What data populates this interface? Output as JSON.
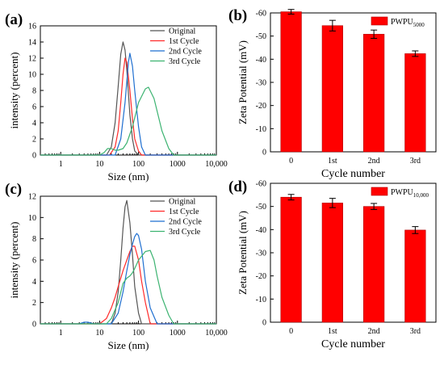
{
  "chart_data": [
    {
      "panel": "(a)",
      "type": "line",
      "xlabel": "Size (nm)",
      "ylabel": "intensity (percent)",
      "xscale": "log",
      "xlim": [
        0.3,
        10000
      ],
      "ylim": [
        0,
        16
      ],
      "xticks": [
        1,
        10,
        100,
        1000,
        10000
      ],
      "xtick_labels": [
        "1",
        "10",
        "100",
        "1000",
        "10,000"
      ],
      "yticks": [
        0,
        2,
        4,
        6,
        8,
        10,
        12,
        14,
        16
      ],
      "legend_position": "top-right",
      "series": [
        {
          "name": "Original",
          "color": "#555555",
          "x": [
            0.3,
            15,
            20,
            25,
            30,
            35,
            40,
            45,
            50,
            60,
            70,
            80,
            100,
            10000
          ],
          "y": [
            0,
            0,
            1.0,
            4.0,
            8.5,
            12.5,
            14.0,
            13.0,
            10.5,
            5.0,
            2.0,
            0.5,
            0,
            0
          ]
        },
        {
          "name": "1st Cycle",
          "color": "#ff2a2a",
          "x": [
            0.3,
            18,
            25,
            30,
            35,
            40,
            45,
            50,
            60,
            70,
            80,
            100,
            120,
            10000
          ],
          "y": [
            0,
            0,
            1.0,
            3.0,
            6.5,
            10.0,
            12.0,
            11.5,
            8.0,
            4.5,
            2.0,
            0.5,
            0,
            0
          ]
        },
        {
          "name": "2nd Cycle",
          "color": "#1f6fd0",
          "x": [
            0.3,
            25,
            35,
            45,
            55,
            60,
            70,
            80,
            100,
            120,
            150,
            10000
          ],
          "y": [
            0,
            0,
            2.0,
            6.5,
            11.5,
            12.6,
            11.0,
            8.0,
            3.5,
            1.0,
            0,
            0
          ]
        },
        {
          "name": "3rd Cycle",
          "color": "#3cb371",
          "x": [
            0.3,
            10,
            13,
            16,
            20,
            25,
            30,
            40,
            50,
            70,
            100,
            150,
            180,
            250,
            400,
            600,
            800,
            10000
          ],
          "y": [
            0,
            0,
            0.3,
            0.8,
            0.8,
            0.6,
            0.6,
            0.8,
            1.5,
            3.5,
            6.5,
            8.2,
            8.4,
            7.0,
            3.0,
            0.8,
            0,
            0
          ]
        }
      ]
    },
    {
      "panel": "(b)",
      "type": "bar",
      "xlabel": "Cycle number",
      "ylabel": "Zeta Potential (mV)",
      "categories": [
        "0",
        "1st",
        "2nd",
        "3rd"
      ],
      "ylim": [
        0,
        -60
      ],
      "yticks": [
        0,
        -10,
        -20,
        -30,
        -40,
        -50,
        -60
      ],
      "legend_position": "top-right",
      "legend_name": "PWPU",
      "legend_sub": "5000",
      "color": "#ff0000",
      "values": [
        -60.5,
        -54.5,
        -50.8,
        -42.4
      ],
      "errors": [
        1.0,
        2.3,
        1.8,
        1.2
      ]
    },
    {
      "panel": "(c)",
      "type": "line",
      "xlabel": "Size (nm)",
      "ylabel": "intensity (percent)",
      "xscale": "log",
      "xlim": [
        0.3,
        10000
      ],
      "ylim": [
        0,
        12
      ],
      "xticks": [
        1,
        10,
        100,
        1000,
        10000
      ],
      "xtick_labels": [
        "1",
        "10",
        "100",
        "1000",
        "10,000"
      ],
      "yticks": [
        0,
        2,
        4,
        6,
        8,
        10,
        12
      ],
      "legend_position": "top-right",
      "series": [
        {
          "name": "Original",
          "color": "#555555",
          "x": [
            0.3,
            20,
            25,
            30,
            35,
            40,
            45,
            50,
            60,
            70,
            80,
            100,
            120,
            10000
          ],
          "y": [
            0,
            0,
            1.0,
            3.0,
            6.0,
            9.0,
            11.0,
            11.6,
            9.5,
            6.5,
            3.5,
            1.0,
            0,
            0
          ]
        },
        {
          "name": "1st Cycle",
          "color": "#ff2a2a",
          "x": [
            0.3,
            10,
            15,
            20,
            25,
            30,
            40,
            50,
            60,
            70,
            80,
            100,
            120,
            150,
            200,
            10000
          ],
          "y": [
            0,
            0,
            0.5,
            1.5,
            2.5,
            3.5,
            5.0,
            6.0,
            6.8,
            7.3,
            7.3,
            6.0,
            4.0,
            2.0,
            0,
            0
          ]
        },
        {
          "name": "2nd Cycle",
          "color": "#1f6fd0",
          "x": [
            0.3,
            3,
            4,
            5,
            7,
            20,
            30,
            40,
            50,
            60,
            70,
            80,
            90,
            100,
            120,
            150,
            200,
            300,
            10000
          ],
          "y": [
            0,
            0,
            0.15,
            0.15,
            0,
            0,
            1.0,
            3.0,
            5.0,
            6.5,
            7.5,
            8.2,
            8.5,
            8.3,
            7.0,
            4.0,
            1.5,
            0,
            0
          ]
        },
        {
          "name": "3rd Cycle",
          "color": "#3cb371",
          "x": [
            0.3,
            15,
            20,
            30,
            40,
            50,
            60,
            70,
            80,
            100,
            150,
            200,
            250,
            300,
            400,
            600,
            800,
            10000
          ],
          "y": [
            0,
            0,
            0.5,
            2.0,
            3.8,
            4.3,
            4.5,
            4.8,
            5.2,
            6.0,
            6.8,
            6.9,
            6.0,
            4.5,
            2.5,
            0.8,
            0,
            0
          ]
        }
      ]
    },
    {
      "panel": "(d)",
      "type": "bar",
      "xlabel": "Cycle number",
      "ylabel": "Zeta Potential (mV)",
      "categories": [
        "0",
        "1st",
        "2nd",
        "3rd"
      ],
      "ylim": [
        0,
        -60
      ],
      "yticks": [
        0,
        -10,
        -20,
        -30,
        -40,
        -50,
        -60
      ],
      "legend_position": "top-right",
      "legend_name": "PWPU",
      "legend_sub": "10,000",
      "color": "#ff0000",
      "values": [
        -54.0,
        -51.5,
        -50.0,
        -39.8
      ],
      "errors": [
        1.2,
        2.0,
        1.3,
        1.5
      ]
    }
  ]
}
